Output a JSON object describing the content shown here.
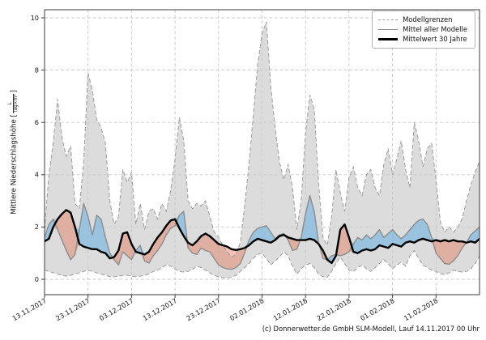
{
  "figure": {
    "ylabel_prefix": "Mittlere Niederschlagshöhe",
    "unit_open": "[",
    "unit_numerator": "L",
    "unit_denominator": "Tag×m²",
    "unit_close": "]",
    "footer": "(c) Donnerwetter.de GmbH SLM-Modell, Lauf 14.11.2017 00 Uhr"
  },
  "legend": {
    "items": [
      {
        "label": "Modellgrenzen",
        "style": "dashed-gray-line"
      },
      {
        "label": "Mittel aller Modelle",
        "style": "solid-gray-line"
      },
      {
        "label": "Mittelwert 30 Jahre",
        "style": "thick-black-line"
      }
    ]
  },
  "chart_data": {
    "type": "line",
    "title": "",
    "xlabel": "",
    "ylabel": "Mittlere Niederschlagshöhe [L/(Tag×m²)]",
    "ylim": [
      -0.6,
      10.3
    ],
    "yticks": [
      0,
      2,
      4,
      6,
      8,
      10
    ],
    "grid": true,
    "legend_position": "upper right",
    "x_unit": "days since 13.11.2017, one value per day",
    "xtick_days": [
      0,
      10,
      20,
      30,
      40,
      50,
      60,
      70,
      80,
      90
    ],
    "xtick_labels": [
      "13.11.2017",
      "23.11.2017",
      "03.12.2017",
      "13.12.2017",
      "23.12.2017",
      "02.01.2018",
      "12.01.2018",
      "22.01.2018",
      "01.02.2018",
      "11.02.2018"
    ],
    "colors": {
      "envelope_fill": "#dcdcdc",
      "envelope_edge": "#9c9c9c",
      "model_mean_line": "#8c8c8c",
      "mean30y_line": "#000000",
      "above_normal_fill": "rgba(108,178,223,0.6)",
      "below_normal_fill": "rgba(226,122,88,0.45)",
      "grid": "#c9c9c9"
    },
    "series": [
      {
        "name": "Modellgrenzen (obere Grenze)",
        "values": [
          1.9,
          4.0,
          5.2,
          6.9,
          5.4,
          4.7,
          5.1,
          2.9,
          2.7,
          4.5,
          7.9,
          7.2,
          6.1,
          5.8,
          5.2,
          3.0,
          2.1,
          2.4,
          4.2,
          3.7,
          4.1,
          2.1,
          2.9,
          1.9,
          2.6,
          2.7,
          2.3,
          2.9,
          2.6,
          3.4,
          4.6,
          6.2,
          5.3,
          3.0,
          2.7,
          2.9,
          2.8,
          3.0,
          2.4,
          1.8,
          1.6,
          1.3,
          1.05,
          0.85,
          0.95,
          1.4,
          2.8,
          4.4,
          6.3,
          8.2,
          9.4,
          9.85,
          7.4,
          5.8,
          4.5,
          3.8,
          4.4,
          3.5,
          1.9,
          3.0,
          5.6,
          7.05,
          6.5,
          3.7,
          1.6,
          1.3,
          2.4,
          4.2,
          3.3,
          2.6,
          3.9,
          4.3,
          3.5,
          3.2,
          4.0,
          4.2,
          3.5,
          3.2,
          4.4,
          5.0,
          4.0,
          4.6,
          5.3,
          4.2,
          3.5,
          6.0,
          5.3,
          4.3,
          5.0,
          5.2,
          3.8,
          2.2,
          1.8,
          2.0,
          1.8,
          2.0,
          2.3,
          3.0,
          3.6,
          4.1,
          4.5
        ]
      },
      {
        "name": "Modellgrenzen (untere Grenze)",
        "values": [
          0.35,
          0.3,
          0.25,
          0.2,
          0.15,
          0.12,
          0.15,
          0.2,
          0.25,
          0.3,
          0.35,
          0.3,
          0.25,
          0.2,
          0.15,
          0.1,
          0.1,
          0.12,
          0.15,
          0.15,
          0.12,
          0.1,
          0.12,
          0.15,
          0.2,
          0.3,
          0.35,
          0.45,
          0.55,
          0.5,
          0.4,
          0.3,
          0.28,
          0.3,
          0.38,
          0.5,
          0.45,
          0.35,
          0.25,
          0.15,
          0.1,
          0.06,
          0.05,
          0.08,
          0.15,
          0.3,
          0.45,
          0.6,
          0.8,
          0.95,
          1.0,
          0.8,
          0.55,
          0.7,
          0.85,
          1.05,
          0.9,
          0.5,
          0.2,
          0.4,
          0.55,
          0.6,
          0.45,
          0.2,
          0.1,
          0.08,
          0.3,
          0.6,
          0.85,
          0.6,
          0.35,
          0.3,
          0.45,
          0.55,
          0.4,
          0.3,
          0.45,
          0.6,
          0.75,
          0.6,
          0.4,
          0.55,
          0.65,
          0.5,
          0.9,
          1.1,
          0.8,
          0.55,
          0.45,
          0.35,
          0.3,
          0.22,
          0.18,
          0.25,
          0.35,
          0.3,
          0.28,
          0.3,
          0.4,
          0.6,
          0.9
        ]
      },
      {
        "name": "Mittel aller Modelle",
        "values": [
          1.6,
          2.1,
          2.3,
          1.9,
          1.5,
          1.1,
          0.75,
          0.95,
          1.9,
          2.9,
          2.4,
          1.7,
          2.45,
          2.3,
          1.6,
          1.0,
          0.75,
          0.55,
          1.05,
          0.9,
          0.75,
          1.1,
          1.3,
          0.7,
          0.62,
          0.9,
          1.1,
          1.35,
          1.7,
          1.95,
          2.05,
          2.45,
          2.6,
          1.2,
          1.0,
          0.95,
          1.2,
          1.1,
          1.05,
          0.8,
          0.55,
          0.45,
          0.4,
          0.38,
          0.45,
          0.6,
          1.0,
          1.5,
          1.8,
          1.95,
          2.0,
          2.05,
          1.8,
          1.55,
          1.7,
          1.75,
          1.5,
          1.1,
          1.15,
          1.6,
          2.5,
          3.2,
          2.6,
          1.4,
          0.8,
          0.75,
          0.9,
          0.95,
          0.9,
          0.95,
          1.05,
          1.35,
          1.6,
          1.5,
          1.7,
          1.55,
          1.7,
          1.9,
          1.6,
          1.75,
          1.9,
          1.7,
          1.55,
          1.7,
          1.9,
          2.1,
          2.25,
          2.3,
          2.1,
          1.6,
          1.0,
          0.8,
          0.6,
          0.58,
          0.7,
          0.9,
          1.2,
          1.4,
          1.7,
          1.85,
          2.0
        ]
      },
      {
        "name": "Mittelwert 30 Jahre",
        "values": [
          1.45,
          1.55,
          2.0,
          2.3,
          2.5,
          2.65,
          2.55,
          2.0,
          1.35,
          1.25,
          1.2,
          1.15,
          1.15,
          1.05,
          1.0,
          0.8,
          0.85,
          1.1,
          1.75,
          1.8,
          1.35,
          1.05,
          1.0,
          0.95,
          1.05,
          1.35,
          1.6,
          1.8,
          2.05,
          2.25,
          2.3,
          1.95,
          1.65,
          1.4,
          1.3,
          1.45,
          1.65,
          1.75,
          1.65,
          1.5,
          1.35,
          1.3,
          1.25,
          1.15,
          1.12,
          1.15,
          1.2,
          1.3,
          1.45,
          1.55,
          1.5,
          1.45,
          1.4,
          1.5,
          1.65,
          1.7,
          1.6,
          1.55,
          1.5,
          1.5,
          1.5,
          1.55,
          1.5,
          1.35,
          1.1,
          0.75,
          0.62,
          0.9,
          1.9,
          2.1,
          1.6,
          1.05,
          1.0,
          1.1,
          1.15,
          1.1,
          1.15,
          1.3,
          1.25,
          1.2,
          1.35,
          1.3,
          1.25,
          1.4,
          1.45,
          1.4,
          1.5,
          1.55,
          1.5,
          1.45,
          1.5,
          1.45,
          1.5,
          1.45,
          1.5,
          1.45,
          1.45,
          1.4,
          1.45,
          1.4,
          1.55
        ]
      }
    ]
  }
}
